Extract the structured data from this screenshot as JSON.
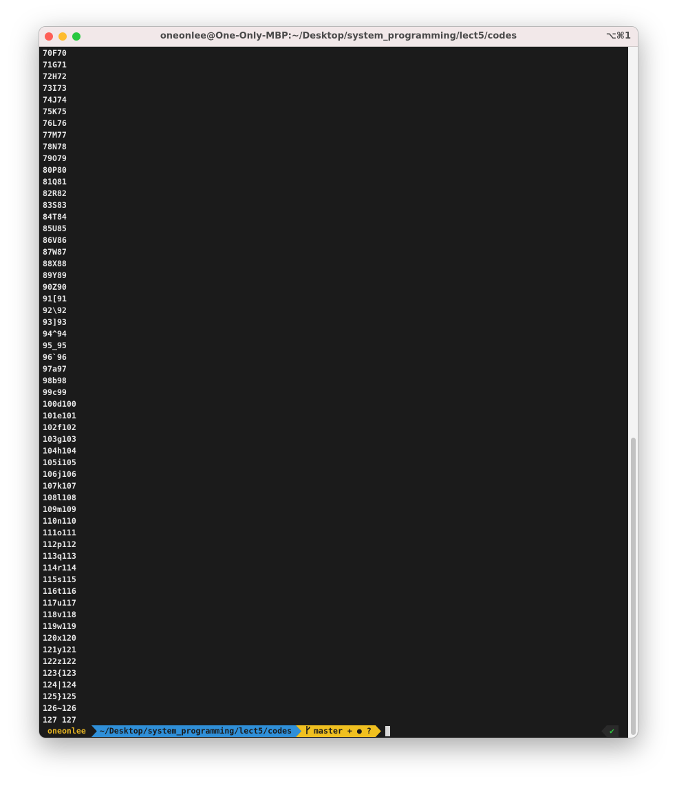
{
  "window": {
    "title": "oneonlee@One-Only-MBP:~/Desktop/system_programming/lect5/codes",
    "shortcut": "⌥⌘1"
  },
  "terminal": {
    "lines": [
      "70F70",
      "71G71",
      "72H72",
      "73I73",
      "74J74",
      "75K75",
      "76L76",
      "77M77",
      "78N78",
      "79O79",
      "80P80",
      "81Q81",
      "82R82",
      "83S83",
      "84T84",
      "85U85",
      "86V86",
      "87W87",
      "88X88",
      "89Y89",
      "90Z90",
      "91[91",
      "92\\92",
      "93]93",
      "94^94",
      "95_95",
      "96`96",
      "97a97",
      "98b98",
      "99c99",
      "100d100",
      "101e101",
      "102f102",
      "103g103",
      "104h104",
      "105i105",
      "106j106",
      "107k107",
      "108l108",
      "109m109",
      "110n110",
      "111o111",
      "112p112",
      "113q113",
      "114r114",
      "115s115",
      "116t116",
      "117u117",
      "118v118",
      "119w119",
      "120x120",
      "121y121",
      "122z122",
      "123{123",
      "124|124",
      "125}125",
      "126~126",
      "127 127"
    ],
    "prompt": {
      "user": "oneonlee",
      "path": "~/Desktop/system_programming/lect5/codes",
      "git": "master + ● ?",
      "status": "✔"
    }
  }
}
